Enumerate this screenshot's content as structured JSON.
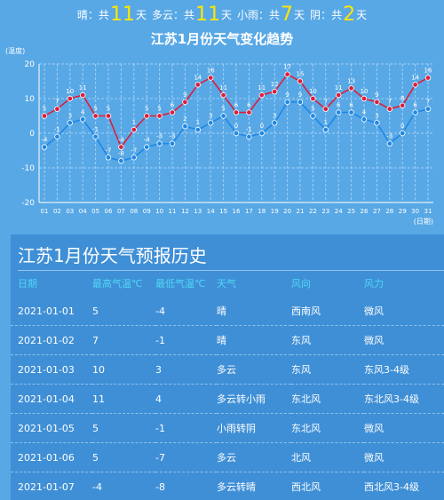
{
  "summary": [
    {
      "label": "晴",
      "mid": "：共",
      "count": "11",
      "unit": "天"
    },
    {
      "label": "多云",
      "mid": "：共",
      "count": "11",
      "unit": "天"
    },
    {
      "label": "小雨",
      "mid": "：共",
      "count": "7",
      "unit": "天"
    },
    {
      "label": "阴",
      "mid": "：共",
      "count": "2",
      "unit": "天"
    }
  ],
  "chart_data": {
    "type": "line",
    "title": "江苏1月份天气变化趋势",
    "ylabel": "(温度)",
    "xlabel": "(日期)",
    "ylim": [
      -20,
      20
    ],
    "yticks": [
      -20,
      -10,
      0,
      10,
      20
    ],
    "categories": [
      "01",
      "02",
      "03",
      "04",
      "05",
      "06",
      "07",
      "08",
      "09",
      "10",
      "11",
      "12",
      "13",
      "14",
      "15",
      "16",
      "17",
      "18",
      "19",
      "20",
      "21",
      "22",
      "23",
      "24",
      "25",
      "26",
      "27",
      "28",
      "29",
      "30",
      "31"
    ],
    "series": [
      {
        "key": "high",
        "color": "#d9203c",
        "values": [
          5,
          7,
          10,
          11,
          5,
          5,
          -4,
          1,
          5,
          5,
          6,
          9,
          14,
          16,
          11,
          6,
          6,
          11,
          12,
          17,
          15,
          10,
          7,
          11,
          13,
          10,
          9,
          7,
          8,
          14,
          16
        ]
      },
      {
        "key": "low",
        "color": "#1e88e5",
        "values": [
          -4,
          -1,
          3,
          4,
          -1,
          -7,
          -8,
          -7,
          -4,
          -3,
          -3,
          2,
          1,
          3,
          5,
          0,
          -1,
          0,
          3,
          9,
          9,
          5,
          1,
          6,
          6,
          4,
          3,
          -3,
          0,
          6,
          7
        ]
      }
    ],
    "grid": true
  },
  "history": {
    "title": "江苏1月份天气预报历史",
    "headers": [
      "日期",
      "最高气温℃",
      "最低气温℃",
      "天气",
      "风向",
      "风力"
    ],
    "rows": [
      [
        "2021-01-01",
        "5",
        "-4",
        "晴",
        "西南风",
        "微风"
      ],
      [
        "2021-01-02",
        "7",
        "-1",
        "晴",
        "东风",
        "微风"
      ],
      [
        "2021-01-03",
        "10",
        "3",
        "多云",
        "东风",
        "东风3-4级"
      ],
      [
        "2021-01-04",
        "11",
        "4",
        "多云转小雨",
        "东北风",
        "东北风3-4级"
      ],
      [
        "2021-01-05",
        "5",
        "-1",
        "小雨转阴",
        "东北风",
        "微风"
      ],
      [
        "2021-01-06",
        "5",
        "-7",
        "多云",
        "北风",
        "微风"
      ],
      [
        "2021-01-07",
        "-4",
        "-8",
        "多云转晴",
        "西北风",
        "西北风3-4级"
      ]
    ]
  }
}
